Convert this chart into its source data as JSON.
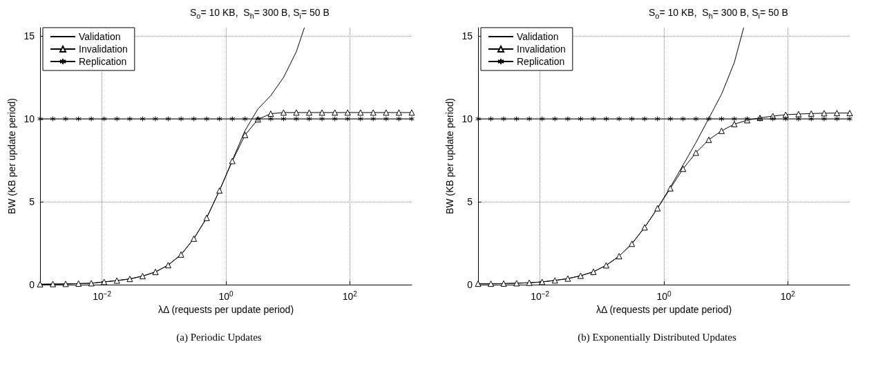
{
  "chart_data": [
    {
      "type": "line",
      "title": "S$_{o}$= 10 KB,  S$_{h}$= 300 B, S$_{i}$= 50 B",
      "xlabel": "λΔ (requests per update period)",
      "ylabel": "BW (KB per update period)",
      "log": "x",
      "grid": true,
      "legend": "top left",
      "xlim": [
        0.001,
        1000
      ],
      "xticks": [
        {
          "value": 0.01,
          "label": "10$^{−2}$"
        },
        {
          "value": 1,
          "label": "10$^{0}$"
        },
        {
          "value": 100,
          "label": "10$^{2}$"
        }
      ],
      "ylim": [
        0,
        15.5
      ],
      "yticks": [
        0,
        5,
        10,
        15
      ],
      "annotations": [
        "(a) Periodic Updates"
      ],
      "x": [
        0.001,
        0.00161,
        0.00259,
        0.00418,
        0.00672,
        0.0108,
        0.0174,
        0.0281,
        0.0452,
        0.0728,
        0.117,
        0.189,
        0.304,
        0.489,
        0.788,
        1.27,
        2.04,
        3.29,
        5.3,
        8.53,
        13.7,
        22.1,
        35.6,
        57.4,
        92.4,
        149,
        239,
        386,
        621,
        1000
      ],
      "series": [
        {
          "name": "Validation",
          "color": "#000000",
          "x": [
            0.001,
            0.00161,
            0.00259,
            0.00418,
            0.00672,
            0.0108,
            0.0174,
            0.0281,
            0.0452,
            0.0728,
            0.117,
            0.189,
            0.304,
            0.489,
            0.788,
            1.27,
            2.04,
            3.29,
            5.3,
            8.53,
            13.7,
            18.5
          ],
          "values": [
            0.03,
            0.04,
            0.05,
            0.07,
            0.09,
            0.17,
            0.25,
            0.35,
            0.52,
            0.77,
            1.18,
            1.82,
            2.78,
            4.03,
            5.68,
            7.5,
            9.3,
            10.6,
            11.4,
            12.5,
            14.05,
            15.5
          ]
        },
        {
          "name": "Invalidation",
          "color": "#000000",
          "marker": "triangle",
          "values": [
            0.03,
            0.04,
            0.05,
            0.07,
            0.09,
            0.17,
            0.25,
            0.35,
            0.52,
            0.77,
            1.18,
            1.82,
            2.78,
            4.03,
            5.68,
            7.46,
            9.03,
            9.97,
            10.31,
            10.38,
            10.38,
            10.38,
            10.38,
            10.38,
            10.38,
            10.38,
            10.38,
            10.38,
            10.38,
            10.38
          ]
        },
        {
          "name": "Replication",
          "color": "#000000",
          "marker": "cross",
          "values": [
            10,
            10,
            10,
            10,
            10,
            10,
            10,
            10,
            10,
            10,
            10,
            10,
            10,
            10,
            10,
            10,
            10,
            10,
            10,
            10,
            10,
            10,
            10,
            10,
            10,
            10,
            10,
            10,
            10,
            10
          ]
        }
      ]
    },
    {
      "type": "line",
      "title": "S$_{o}$= 10 KB,  S$_{h}$= 300 B, S$_{i}$= 50 B",
      "xlabel": "λΔ (requests per update period)",
      "ylabel": "BW (KB per update period)",
      "log": "x",
      "grid": true,
      "legend": "top left",
      "xlim": [
        0.001,
        1000
      ],
      "xticks": [
        {
          "value": 0.01,
          "label": "10$^{−2}$"
        },
        {
          "value": 1,
          "label": "10$^{0}$"
        },
        {
          "value": 100,
          "label": "10$^{2}$"
        }
      ],
      "ylim": [
        0,
        15.5
      ],
      "yticks": [
        0,
        5,
        10,
        15
      ],
      "annotations": [
        "(b) Exponentially Distributed Updates"
      ],
      "x": [
        0.001,
        0.00161,
        0.00259,
        0.00418,
        0.00672,
        0.0108,
        0.0174,
        0.0281,
        0.0452,
        0.0728,
        0.117,
        0.189,
        0.304,
        0.489,
        0.788,
        1.27,
        2.04,
        3.29,
        5.3,
        8.53,
        13.7,
        22.1,
        35.6,
        57.4,
        92.4,
        149,
        239,
        386,
        621,
        1000
      ],
      "series": [
        {
          "name": "Validation",
          "color": "#000000",
          "x": [
            0.001,
            0.00161,
            0.00259,
            0.00418,
            0.00672,
            0.0108,
            0.0174,
            0.0281,
            0.0452,
            0.0728,
            0.117,
            0.189,
            0.304,
            0.489,
            0.788,
            1.27,
            2.04,
            3.29,
            5.3,
            8.53,
            13.7,
            19.4
          ],
          "values": [
            0.06,
            0.06,
            0.07,
            0.09,
            0.12,
            0.17,
            0.26,
            0.37,
            0.54,
            0.78,
            1.17,
            1.72,
            2.47,
            3.46,
            4.61,
            5.88,
            7.22,
            8.57,
            10.03,
            11.49,
            13.4,
            15.5
          ]
        },
        {
          "name": "Invalidation",
          "color": "#000000",
          "marker": "triangle",
          "values": [
            0.06,
            0.06,
            0.07,
            0.09,
            0.12,
            0.17,
            0.26,
            0.37,
            0.54,
            0.78,
            1.17,
            1.72,
            2.47,
            3.46,
            4.61,
            5.81,
            6.99,
            7.96,
            8.74,
            9.28,
            9.68,
            9.92,
            10.06,
            10.17,
            10.25,
            10.29,
            10.32,
            10.34,
            10.35,
            10.35
          ]
        },
        {
          "name": "Replication",
          "color": "#000000",
          "marker": "cross",
          "values": [
            10,
            10,
            10,
            10,
            10,
            10,
            10,
            10,
            10,
            10,
            10,
            10,
            10,
            10,
            10,
            10,
            10,
            10,
            10,
            10,
            10,
            10,
            10,
            10,
            10,
            10,
            10,
            10,
            10,
            10
          ]
        }
      ]
    }
  ]
}
